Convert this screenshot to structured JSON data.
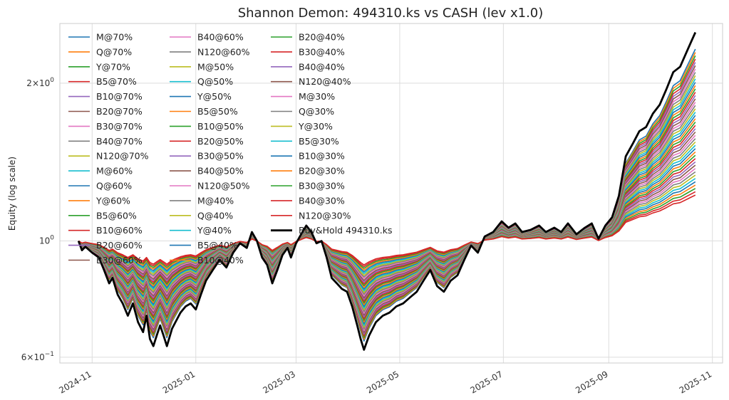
{
  "chart_data": {
    "type": "line",
    "title": "Shannon Demon: 494310.ks vs CASH (lev x1.0)",
    "xlabel": "",
    "ylabel": "Equity (log scale)",
    "y_scale": "log",
    "ylim": [
      0.585,
      2.6
    ],
    "xlim": [
      "2024-10-13",
      "2025-11-07"
    ],
    "x_ticks": [
      "2024-11",
      "2025-01",
      "2025-03",
      "2025-05",
      "2025-07",
      "2025-09",
      "2025-11"
    ],
    "y_ticks": [
      {
        "value": 2.0,
        "mantissa": "2",
        "exponent": "0"
      },
      {
        "value": 1.0,
        "mantissa": "",
        "exponent": "",
        "plain": "10",
        "plain_exp": "0"
      },
      {
        "value": 0.6,
        "mantissa": "6",
        "exponent": "−1"
      }
    ],
    "grid": true,
    "legend_position": "top-left",
    "legend_columns": 3,
    "buy_hold": {
      "name": "Buy&Hold 494310.ks",
      "color": "#000000",
      "x": [
        "2024-10-24",
        "2024-10-26",
        "2024-10-28",
        "2024-11-01",
        "2024-11-05",
        "2024-11-08",
        "2024-11-11",
        "2024-11-13",
        "2024-11-16",
        "2024-11-19",
        "2024-11-22",
        "2024-11-25",
        "2024-11-28",
        "2024-12-01",
        "2024-12-03",
        "2024-12-05",
        "2024-12-07",
        "2024-12-09",
        "2024-12-11",
        "2024-12-13",
        "2024-12-15",
        "2024-12-18",
        "2024-12-20",
        "2024-12-23",
        "2024-12-26",
        "2024-12-29",
        "2025-01-01",
        "2025-01-04",
        "2025-01-07",
        "2025-01-11",
        "2025-01-15",
        "2025-01-19",
        "2025-01-23",
        "2025-01-27",
        "2025-01-31",
        "2025-02-03",
        "2025-02-06",
        "2025-02-09",
        "2025-02-12",
        "2025-02-15",
        "2025-02-18",
        "2025-02-21",
        "2025-02-24",
        "2025-02-26",
        "2025-03-01",
        "2025-03-04",
        "2025-03-07",
        "2025-03-10",
        "2025-03-13",
        "2025-03-16",
        "2025-03-19",
        "2025-03-22",
        "2025-03-25",
        "2025-03-28",
        "2025-03-31",
        "2025-04-03",
        "2025-04-06",
        "2025-04-08",
        "2025-04-10",
        "2025-04-13",
        "2025-04-17",
        "2025-04-21",
        "2025-04-25",
        "2025-04-29",
        "2025-05-03",
        "2025-05-07",
        "2025-05-11",
        "2025-05-15",
        "2025-05-19",
        "2025-05-23",
        "2025-05-27",
        "2025-05-31",
        "2025-06-04",
        "2025-06-08",
        "2025-06-12",
        "2025-06-16",
        "2025-06-20",
        "2025-06-25",
        "2025-06-30",
        "2025-07-04",
        "2025-07-08",
        "2025-07-12",
        "2025-07-17",
        "2025-07-22",
        "2025-07-26",
        "2025-07-31",
        "2025-08-04",
        "2025-08-08",
        "2025-08-13",
        "2025-08-18",
        "2025-08-22",
        "2025-08-26",
        "2025-08-30",
        "2025-09-03",
        "2025-09-07",
        "2025-09-11",
        "2025-09-15",
        "2025-09-19",
        "2025-09-23",
        "2025-09-27",
        "2025-10-01",
        "2025-10-05",
        "2025-10-09",
        "2025-10-13",
        "2025-10-17",
        "2025-10-20",
        "2025-10-22"
      ],
      "values": [
        1.0,
        0.96,
        0.975,
        0.95,
        0.93,
        0.88,
        0.83,
        0.85,
        0.79,
        0.76,
        0.72,
        0.76,
        0.7,
        0.67,
        0.72,
        0.65,
        0.63,
        0.66,
        0.69,
        0.66,
        0.63,
        0.68,
        0.7,
        0.73,
        0.75,
        0.76,
        0.74,
        0.79,
        0.84,
        0.88,
        0.92,
        0.89,
        0.95,
        0.99,
        0.97,
        1.04,
        1.0,
        0.93,
        0.9,
        0.83,
        0.88,
        0.94,
        0.97,
        0.93,
        0.99,
        1.03,
        1.07,
        1.04,
        0.99,
        1.0,
        0.93,
        0.85,
        0.83,
        0.81,
        0.8,
        0.75,
        0.69,
        0.65,
        0.62,
        0.66,
        0.7,
        0.72,
        0.73,
        0.75,
        0.76,
        0.78,
        0.8,
        0.84,
        0.88,
        0.82,
        0.8,
        0.84,
        0.86,
        0.92,
        0.98,
        0.95,
        1.02,
        1.04,
        1.09,
        1.06,
        1.08,
        1.04,
        1.05,
        1.07,
        1.04,
        1.06,
        1.04,
        1.08,
        1.03,
        1.06,
        1.08,
        1.01,
        1.07,
        1.11,
        1.22,
        1.45,
        1.53,
        1.62,
        1.65,
        1.75,
        1.82,
        1.95,
        2.1,
        2.15,
        2.3,
        2.42,
        2.5
      ]
    },
    "series": [
      {
        "name": "M@70%",
        "color": "#1f77b4"
      },
      {
        "name": "Q@70%",
        "color": "#ff7f0e"
      },
      {
        "name": "Y@70%",
        "color": "#2ca02c"
      },
      {
        "name": "B5@70%",
        "color": "#d62728"
      },
      {
        "name": "B10@70%",
        "color": "#9467bd"
      },
      {
        "name": "B20@70%",
        "color": "#8c564b"
      },
      {
        "name": "B30@70%",
        "color": "#e377c2"
      },
      {
        "name": "B40@70%",
        "color": "#7f7f7f"
      },
      {
        "name": "N120@70%",
        "color": "#bcbd22"
      },
      {
        "name": "M@60%",
        "color": "#17becf"
      },
      {
        "name": "Q@60%",
        "color": "#1f77b4"
      },
      {
        "name": "Y@60%",
        "color": "#ff7f0e"
      },
      {
        "name": "B5@60%",
        "color": "#2ca02c"
      },
      {
        "name": "B10@60%",
        "color": "#d62728"
      },
      {
        "name": "B20@60%",
        "color": "#9467bd"
      },
      {
        "name": "B30@60%",
        "color": "#8c564b"
      },
      {
        "name": "B40@60%",
        "color": "#e377c2"
      },
      {
        "name": "N120@60%",
        "color": "#7f7f7f"
      },
      {
        "name": "M@50%",
        "color": "#bcbd22"
      },
      {
        "name": "Q@50%",
        "color": "#17becf"
      },
      {
        "name": "Y@50%",
        "color": "#1f77b4"
      },
      {
        "name": "B5@50%",
        "color": "#ff7f0e"
      },
      {
        "name": "B10@50%",
        "color": "#2ca02c"
      },
      {
        "name": "B20@50%",
        "color": "#d62728"
      },
      {
        "name": "B30@50%",
        "color": "#9467bd"
      },
      {
        "name": "B40@50%",
        "color": "#8c564b"
      },
      {
        "name": "N120@50%",
        "color": "#e377c2"
      },
      {
        "name": "M@40%",
        "color": "#7f7f7f"
      },
      {
        "name": "Q@40%",
        "color": "#bcbd22"
      },
      {
        "name": "Y@40%",
        "color": "#17becf"
      },
      {
        "name": "B5@40%",
        "color": "#1f77b4"
      },
      {
        "name": "B10@40%",
        "color": "#ff7f0e"
      },
      {
        "name": "B20@40%",
        "color": "#2ca02c"
      },
      {
        "name": "B30@40%",
        "color": "#d62728"
      },
      {
        "name": "B40@40%",
        "color": "#9467bd"
      },
      {
        "name": "N120@40%",
        "color": "#8c564b"
      },
      {
        "name": "M@30%",
        "color": "#e377c2"
      },
      {
        "name": "Q@30%",
        "color": "#7f7f7f"
      },
      {
        "name": "Y@30%",
        "color": "#bcbd22"
      },
      {
        "name": "B5@30%",
        "color": "#17becf"
      },
      {
        "name": "B10@30%",
        "color": "#1f77b4"
      },
      {
        "name": "B20@30%",
        "color": "#ff7f0e"
      },
      {
        "name": "B30@30%",
        "color": "#2ca02c"
      },
      {
        "name": "B40@30%",
        "color": "#d62728"
      },
      {
        "name": "N120@30%",
        "color": "#d62728"
      }
    ]
  }
}
